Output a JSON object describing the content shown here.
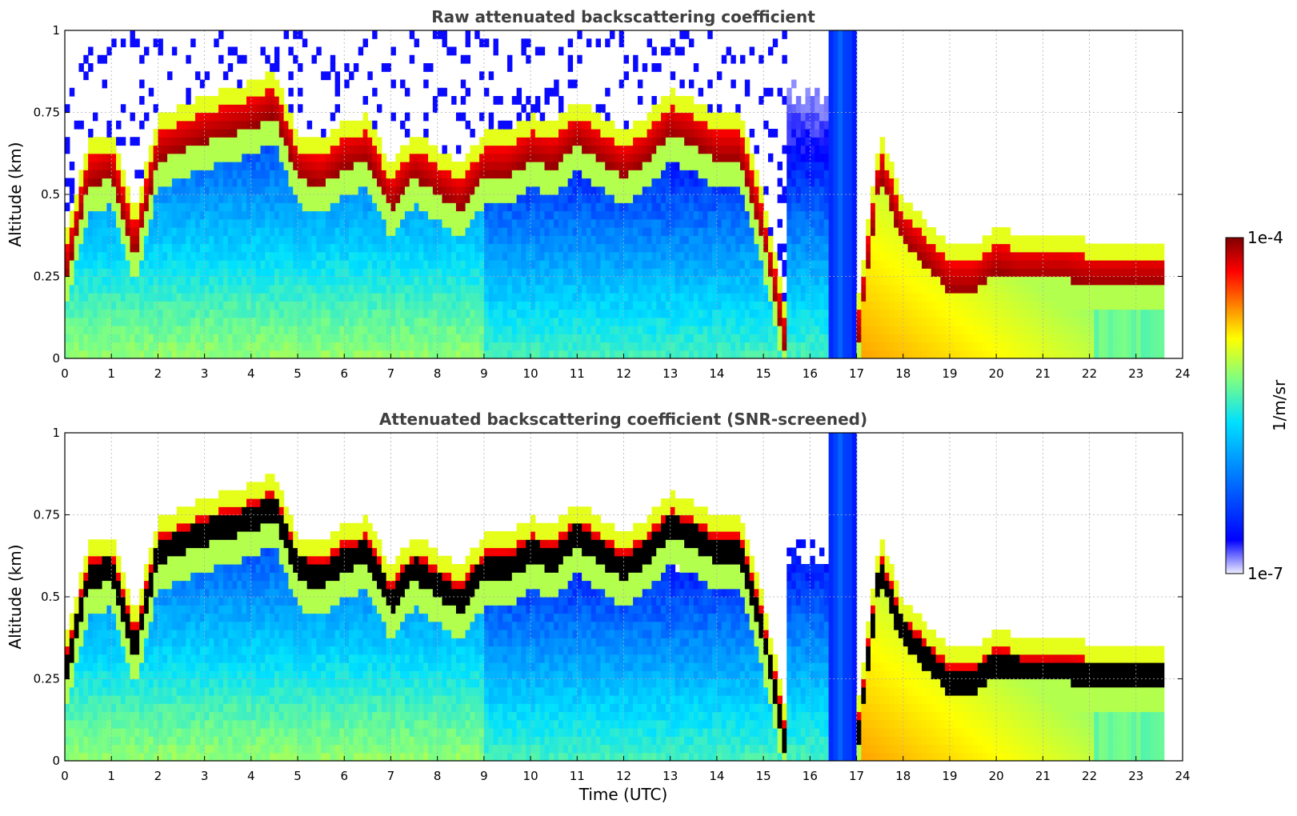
{
  "chart_data": [
    {
      "type": "heatmap",
      "title": "Raw attenuated backscattering coefficient",
      "xlabel": "",
      "ylabel": "Altitude (km)",
      "xlim": [
        0,
        24
      ],
      "ylim": [
        0,
        1
      ],
      "x_ticks": [
        "0",
        "1",
        "2",
        "3",
        "4",
        "5",
        "6",
        "7",
        "8",
        "9",
        "10",
        "11",
        "12",
        "13",
        "14",
        "15",
        "16",
        "17",
        "18",
        "19",
        "20",
        "21",
        "22",
        "23",
        "24"
      ],
      "y_ticks": [
        "0",
        "0.25",
        "0.5",
        "0.75",
        "1"
      ],
      "grid": true,
      "screened": false,
      "layers": {
        "time": [
          0,
          0.5,
          1,
          1.5,
          2,
          2.5,
          3,
          3.5,
          4,
          4.5,
          5,
          5.5,
          6,
          6.5,
          7,
          7.5,
          8,
          8.5,
          9,
          9.5,
          10,
          10.5,
          11,
          11.5,
          12,
          12.5,
          13,
          13.5,
          14,
          14.5,
          15,
          15.5,
          16,
          16.5,
          17,
          17.5,
          18,
          18.5,
          19,
          19.5,
          20,
          20.5,
          21,
          21.5,
          22
        ],
        "layer1_altitude_km": [
          0.22,
          0.52,
          0.55,
          0.3,
          0.6,
          0.63,
          0.66,
          0.68,
          0.7,
          0.74,
          0.55,
          0.52,
          0.58,
          0.6,
          0.45,
          0.55,
          0.5,
          0.45,
          0.55,
          0.55,
          0.6,
          0.58,
          0.65,
          0.6,
          0.55,
          0.6,
          0.68,
          0.65,
          0.6,
          0.6,
          0.35,
          0,
          0,
          0,
          0,
          0.55,
          0.35,
          0.28,
          0.2,
          0.2,
          0.26,
          0.24,
          0.24,
          0.24,
          0.22
        ]
      }
    },
    {
      "type": "heatmap",
      "title": "Attenuated backscattering coefficient (SNR-screened)",
      "xlabel": "Time (UTC)",
      "ylabel": "Altitude (km)",
      "xlim": [
        0,
        24
      ],
      "ylim": [
        0,
        1
      ],
      "x_ticks": [
        "0",
        "1",
        "2",
        "3",
        "4",
        "5",
        "6",
        "7",
        "8",
        "9",
        "10",
        "11",
        "12",
        "13",
        "14",
        "15",
        "16",
        "17",
        "18",
        "19",
        "20",
        "21",
        "22",
        "23",
        "24"
      ],
      "y_ticks": [
        "0",
        "0.25",
        "0.5",
        "0.75",
        "1"
      ],
      "grid": true,
      "screened": true
    }
  ],
  "colorbar": {
    "label": "1/m/sr",
    "min_label": "1e-7",
    "max_label": "1e-4",
    "scale": "log",
    "colormap": [
      "#eeeeff",
      "#0000ff",
      "#0080ff",
      "#00e0ff",
      "#80ff80",
      "#ffff00",
      "#ff8000",
      "#ff0000",
      "#800000"
    ]
  }
}
